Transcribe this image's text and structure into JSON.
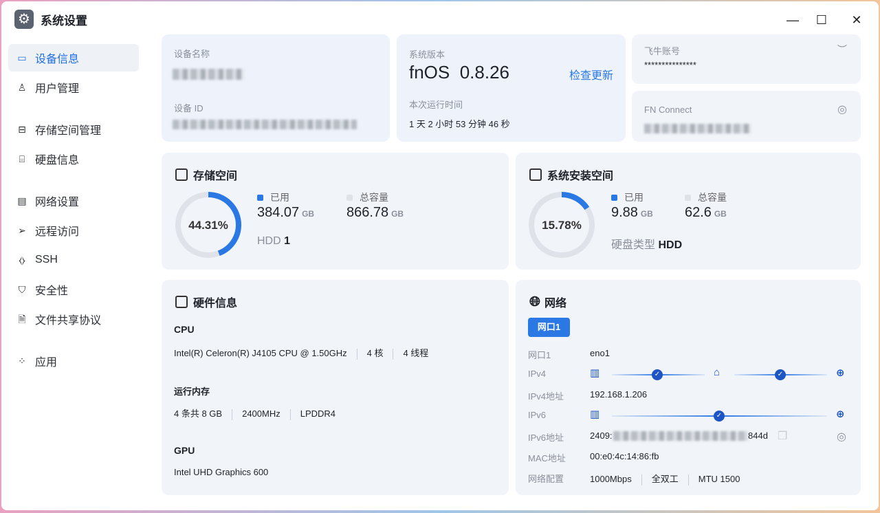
{
  "window": {
    "title": "系统设置",
    "icon": "gear-icon",
    "controls": [
      "minimize",
      "maximize",
      "close"
    ]
  },
  "sidebar": {
    "items": [
      {
        "label": "设备信息",
        "icon": "monitor-icon",
        "active": true
      },
      {
        "label": "用户管理",
        "icon": "user-gear-icon"
      },
      {
        "label": "存储空间管理",
        "icon": "storage-icon"
      },
      {
        "label": "硬盘信息",
        "icon": "disk-icon"
      },
      {
        "label": "网络设置",
        "icon": "network-icon"
      },
      {
        "label": "远程访问",
        "icon": "send-icon"
      },
      {
        "label": "SSH",
        "icon": "code-icon"
      },
      {
        "label": "安全性",
        "icon": "shield-icon"
      },
      {
        "label": "文件共享协议",
        "icon": "file-icon"
      },
      {
        "label": "应用",
        "icon": "apps-icon"
      }
    ]
  },
  "device": {
    "name_label": "设备名称",
    "id_label": "设备 ID"
  },
  "system": {
    "version_label": "系统版本",
    "version": "fnOS  0.8.26",
    "check_update": "检查更新",
    "uptime_label": "本次运行时间",
    "uptime": "1 天 2 小时 53 分钟 46 秒"
  },
  "account": {
    "label": "飞牛账号",
    "value": "***************"
  },
  "fnconnect": {
    "label": "FN Connect"
  },
  "storage": {
    "title": "存储空间",
    "percent": 44.31,
    "percent_text": "44.31%",
    "used_label": "已用",
    "used": "384.07",
    "used_unit": "GB",
    "total_label": "总容量",
    "total": "866.78",
    "total_unit": "GB",
    "type_label": "HDD",
    "type_value": "1"
  },
  "sysspace": {
    "title": "系统安装空间",
    "percent": 15.78,
    "percent_text": "15.78%",
    "used_label": "已用",
    "used": "9.88",
    "used_unit": "GB",
    "total_label": "总容量",
    "total": "62.6",
    "total_unit": "GB",
    "type_label": "硬盘类型",
    "type_value": "HDD"
  },
  "hardware": {
    "title": "硬件信息",
    "cpu_label": "CPU",
    "cpu": "Intel(R) Celeron(R) J4105 CPU @ 1.50GHz",
    "cores": "4 核",
    "threads": "4 线程",
    "mem_label": "运行内存",
    "mem": "4 条共 8 GB",
    "mem_speed": "2400MHz",
    "mem_type": "LPDDR4",
    "gpu_label": "GPU",
    "gpu": "Intel UHD Graphics 600"
  },
  "network": {
    "title": "网络",
    "tab": "网口1",
    "rows": {
      "port_label": "网口1",
      "port": "eno1",
      "ipv4_label": "IPv4",
      "ipv4addr_label": "IPv4地址",
      "ipv4addr": "192.168.1.206",
      "ipv6_label": "IPv6",
      "ipv6addr_label": "IPv6地址",
      "ipv6addr_start": "2409:",
      "ipv6addr_end": "844d",
      "mac_label": "MAC地址",
      "mac": "00:e0:4c:14:86:fb",
      "config_label": "网络配置",
      "speed": "1000Mbps",
      "duplex": "全双工",
      "mtu": "MTU 1500"
    }
  },
  "colors": {
    "accent": "#2a78e4",
    "ring_track": "#dfe2e8",
    "card_bg": "#f1f4f9"
  }
}
